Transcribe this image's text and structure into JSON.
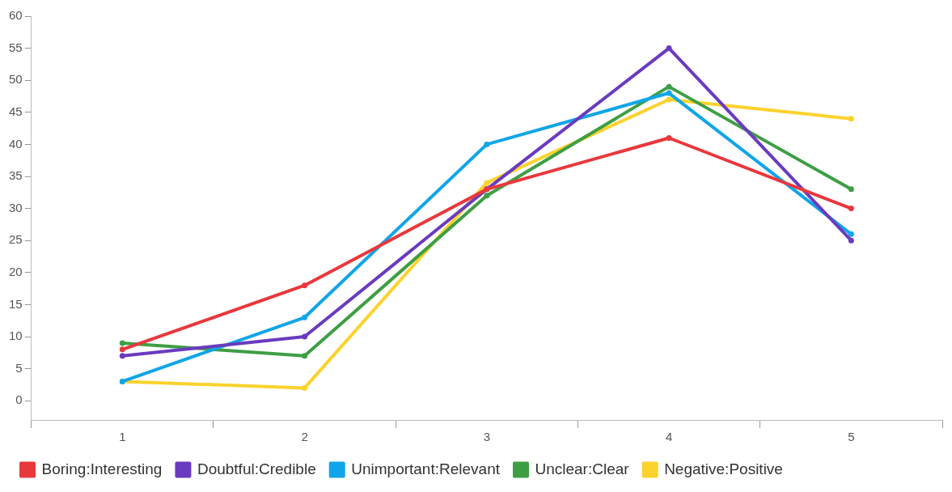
{
  "chart_data": {
    "type": "line",
    "categories": [
      "1",
      "2",
      "3",
      "4",
      "5"
    ],
    "series": [
      {
        "name": "Boring:Interesting",
        "color": "#e8383d",
        "values": [
          8,
          18,
          33,
          41,
          30
        ]
      },
      {
        "name": "Doubtful:Credible",
        "color": "#6a3bc0",
        "values": [
          7,
          10,
          33,
          55,
          25
        ]
      },
      {
        "name": "Unimportant:Relevant",
        "color": "#10a5e8",
        "values": [
          3,
          13,
          40,
          48,
          26
        ]
      },
      {
        "name": "Unclear:Clear",
        "color": "#3e9e44",
        "values": [
          9,
          7,
          32,
          49,
          33
        ]
      },
      {
        "name": "Negative:Positive",
        "color": "#fcd22c",
        "values": [
          3,
          2,
          34,
          47,
          44
        ]
      }
    ],
    "ylim": [
      -3,
      60
    ],
    "yticks": [
      0,
      5,
      10,
      15,
      20,
      25,
      30,
      35,
      40,
      45,
      50,
      55,
      60
    ],
    "legend": "bottom left",
    "marker": "circle",
    "line_style": "solid"
  }
}
